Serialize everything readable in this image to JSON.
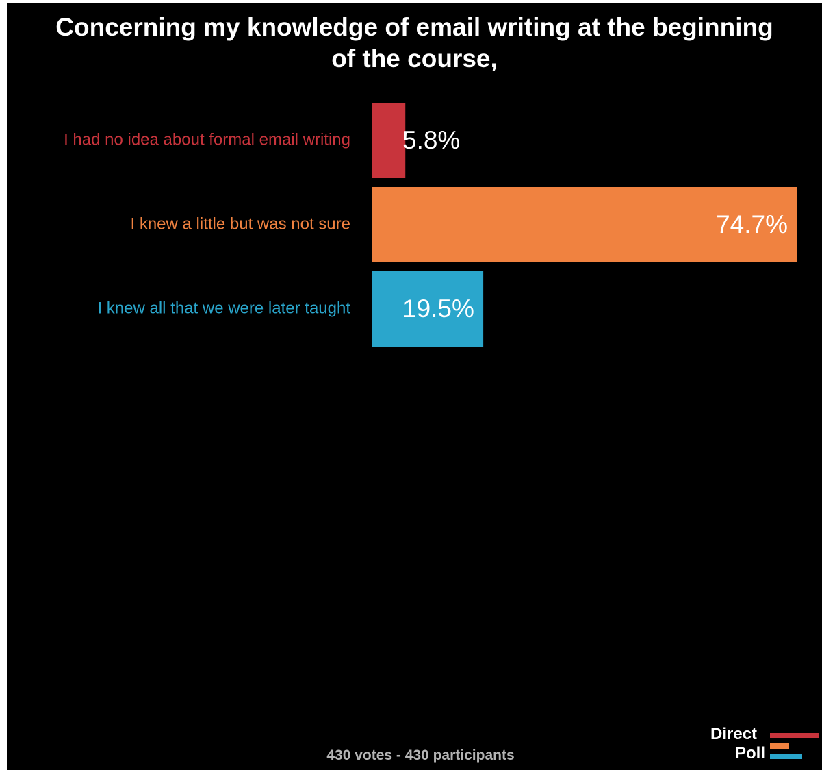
{
  "chart_data": {
    "type": "bar",
    "orientation": "horizontal",
    "title_lines": [
      "Concerning my knowledge of email writing at the beginning",
      "of the course,"
    ],
    "categories": [
      "I had no idea about formal email writing",
      "I knew a little but was not sure",
      "I knew all that we were later taught"
    ],
    "values": [
      5.8,
      74.7,
      19.5
    ],
    "value_labels": [
      "5.8%",
      "74.7%",
      "19.5%"
    ],
    "colors": [
      "#c8343c",
      "#f08240",
      "#2aa6cc"
    ],
    "xlim": [
      0,
      74.7
    ],
    "grid": false,
    "legend": "none"
  },
  "footer": "430 votes - 430 participants",
  "logo": {
    "line1": "Direct",
    "line2": "Poll",
    "colors": [
      "#c8343c",
      "#f08240",
      "#2aa6cc"
    ]
  }
}
